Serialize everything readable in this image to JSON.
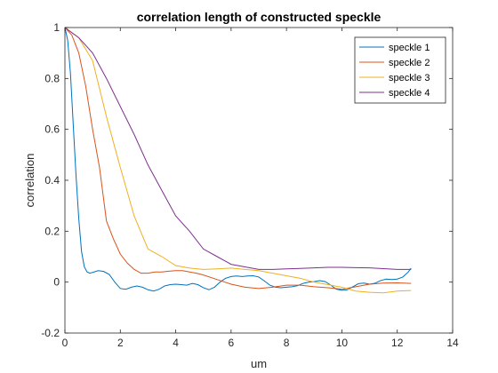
{
  "chart_data": {
    "type": "line",
    "title": "correlation length of constructed speckle",
    "xlabel": "um",
    "ylabel": "correlation",
    "xlim": [
      0,
      14
    ],
    "ylim": [
      -0.2,
      1
    ],
    "xticks": [
      0,
      2,
      4,
      6,
      8,
      10,
      12,
      14
    ],
    "yticks": [
      -0.2,
      0,
      0.2,
      0.4,
      0.6,
      0.8,
      1
    ],
    "grid": false,
    "legend_position": "top-right",
    "series": [
      {
        "name": "speckle 1",
        "color": "#0072BD",
        "x": [
          0,
          0.1,
          0.2,
          0.3,
          0.4,
          0.5,
          0.6,
          0.7,
          0.8,
          0.9,
          1.0,
          1.2,
          1.4,
          1.6,
          1.8,
          2.0,
          2.2,
          2.4,
          2.6,
          2.8,
          3.0,
          3.2,
          3.4,
          3.6,
          3.8,
          4.0,
          4.2,
          4.4,
          4.6,
          4.8,
          5.0,
          5.2,
          5.4,
          5.6,
          5.8,
          6.0,
          6.2,
          6.4,
          6.6,
          6.8,
          7.0,
          7.2,
          7.4,
          7.6,
          7.8,
          8.0,
          8.2,
          8.4,
          8.6,
          8.8,
          9.0,
          9.2,
          9.4,
          9.6,
          9.8,
          10.0,
          10.2,
          10.4,
          10.6,
          10.8,
          11.0,
          11.2,
          11.4,
          11.6,
          11.8,
          12.0,
          12.2,
          12.4,
          12.5
        ],
        "y": [
          1.0,
          0.95,
          0.82,
          0.62,
          0.42,
          0.25,
          0.12,
          0.06,
          0.04,
          0.035,
          0.038,
          0.045,
          0.042,
          0.03,
          0.0,
          -0.025,
          -0.028,
          -0.02,
          -0.015,
          -0.02,
          -0.03,
          -0.035,
          -0.028,
          -0.015,
          -0.01,
          -0.008,
          -0.01,
          -0.012,
          -0.005,
          -0.01,
          -0.022,
          -0.03,
          -0.02,
          0.0,
          0.015,
          0.022,
          0.024,
          0.022,
          0.024,
          0.025,
          0.02,
          0.005,
          -0.012,
          -0.02,
          -0.022,
          -0.02,
          -0.018,
          -0.014,
          -0.005,
          0.0,
          0.002,
          0.006,
          0.002,
          -0.012,
          -0.028,
          -0.032,
          -0.03,
          -0.018,
          -0.006,
          -0.004,
          -0.008,
          -0.004,
          0.006,
          0.012,
          0.01,
          0.012,
          0.02,
          0.04,
          0.055
        ]
      },
      {
        "name": "speckle 2",
        "color": "#D95319",
        "x": [
          0,
          0.25,
          0.5,
          0.75,
          1.0,
          1.25,
          1.5,
          1.75,
          2.0,
          2.25,
          2.5,
          2.75,
          3.0,
          3.25,
          3.5,
          3.75,
          4.0,
          4.25,
          4.5,
          4.75,
          5.0,
          5.5,
          6.0,
          6.5,
          7.0,
          7.5,
          8.0,
          8.5,
          9.0,
          9.5,
          10.0,
          10.5,
          11.0,
          11.5,
          12.0,
          12.5
        ],
        "y": [
          1.0,
          0.97,
          0.9,
          0.77,
          0.6,
          0.45,
          0.24,
          0.17,
          0.11,
          0.075,
          0.05,
          0.035,
          0.035,
          0.04,
          0.04,
          0.043,
          0.045,
          0.045,
          0.04,
          0.035,
          0.028,
          0.01,
          -0.008,
          -0.02,
          -0.025,
          -0.02,
          -0.012,
          -0.012,
          -0.018,
          -0.022,
          -0.028,
          -0.018,
          -0.008,
          -0.004,
          -0.003,
          -0.005
        ]
      },
      {
        "name": "speckle 3",
        "color": "#EDB120",
        "x": [
          0,
          0.5,
          1.0,
          1.5,
          2.0,
          2.5,
          3.0,
          3.5,
          4.0,
          4.5,
          5.0,
          5.5,
          6.0,
          6.5,
          7.0,
          7.5,
          8.0,
          8.5,
          9.0,
          9.5,
          10.0,
          10.5,
          11.0,
          11.5,
          12.0,
          12.5
        ],
        "y": [
          1.0,
          0.96,
          0.87,
          0.65,
          0.45,
          0.26,
          0.13,
          0.1,
          0.065,
          0.055,
          0.05,
          0.052,
          0.055,
          0.05,
          0.045,
          0.035,
          0.025,
          0.015,
          0.0,
          -0.01,
          -0.02,
          -0.035,
          -0.04,
          -0.042,
          -0.035,
          -0.033
        ]
      },
      {
        "name": "speckle 4",
        "color": "#7E2F8E",
        "x": [
          0,
          0.5,
          1.0,
          1.5,
          2.0,
          2.5,
          3.0,
          3.5,
          4.0,
          4.5,
          5.0,
          5.5,
          6.0,
          6.5,
          7.0,
          7.5,
          8.0,
          8.5,
          9.0,
          9.5,
          10.0,
          10.5,
          11.0,
          11.5,
          12.0,
          12.5
        ],
        "y": [
          1.0,
          0.96,
          0.9,
          0.8,
          0.69,
          0.58,
          0.46,
          0.36,
          0.26,
          0.2,
          0.13,
          0.1,
          0.07,
          0.06,
          0.05,
          0.05,
          0.052,
          0.054,
          0.056,
          0.058,
          0.058,
          0.057,
          0.056,
          0.053,
          0.05,
          0.05
        ]
      }
    ]
  }
}
